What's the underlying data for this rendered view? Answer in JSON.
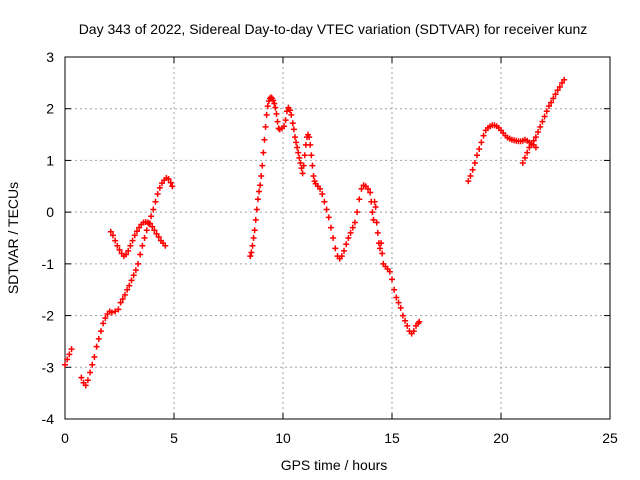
{
  "chart_data": {
    "type": "scatter",
    "title": "Day 343 of 2022, Sidereal Day-to-day VTEC variation (SDTVAR) for receiver kunz",
    "xlabel": "GPS time / hours",
    "ylabel": "SDTVAR / TECUs",
    "xlim": [
      0,
      25
    ],
    "ylim": [
      -4,
      3
    ],
    "xticks": [
      0,
      5,
      10,
      15,
      20,
      25
    ],
    "yticks": [
      -4,
      -3,
      -2,
      -1,
      0,
      1,
      2,
      3
    ],
    "grid": true,
    "marker": "plus",
    "color": "#ff0000",
    "segments": [
      [
        [
          0.0,
          -2.95
        ],
        [
          0.1,
          -2.85
        ],
        [
          0.2,
          -2.75
        ],
        [
          0.3,
          -2.65
        ]
      ],
      [
        [
          0.75,
          -3.2
        ],
        [
          0.85,
          -3.3
        ],
        [
          0.95,
          -3.35
        ],
        [
          1.05,
          -3.25
        ],
        [
          1.15,
          -3.1
        ],
        [
          1.25,
          -2.95
        ],
        [
          1.35,
          -2.8
        ],
        [
          1.45,
          -2.6
        ],
        [
          1.55,
          -2.45
        ],
        [
          1.65,
          -2.3
        ],
        [
          1.75,
          -2.15
        ],
        [
          1.85,
          -2.05
        ],
        [
          1.95,
          -1.97
        ],
        [
          2.05,
          -1.92
        ],
        [
          2.15,
          -1.94
        ],
        [
          2.3,
          -1.92
        ],
        [
          2.45,
          -1.88
        ],
        [
          2.55,
          -1.75
        ],
        [
          2.65,
          -1.68
        ],
        [
          2.75,
          -1.6
        ],
        [
          2.85,
          -1.5
        ],
        [
          2.95,
          -1.42
        ],
        [
          3.05,
          -1.32
        ],
        [
          3.15,
          -1.22
        ],
        [
          3.25,
          -1.12
        ],
        [
          3.35,
          -1.0
        ],
        [
          3.45,
          -0.82
        ],
        [
          3.55,
          -0.65
        ],
        [
          3.65,
          -0.5
        ],
        [
          3.75,
          -0.35
        ],
        [
          3.85,
          -0.22
        ],
        [
          3.95,
          -0.08
        ],
        [
          4.05,
          0.05
        ],
        [
          4.15,
          0.2
        ],
        [
          4.25,
          0.35
        ],
        [
          4.35,
          0.47
        ],
        [
          4.45,
          0.56
        ],
        [
          4.55,
          0.62
        ],
        [
          4.65,
          0.66
        ],
        [
          4.75,
          0.64
        ],
        [
          4.85,
          0.57
        ],
        [
          4.92,
          0.5
        ]
      ],
      [
        [
          2.1,
          -0.38
        ],
        [
          2.2,
          -0.45
        ],
        [
          2.3,
          -0.55
        ],
        [
          2.4,
          -0.65
        ],
        [
          2.5,
          -0.73
        ],
        [
          2.6,
          -0.8
        ],
        [
          2.7,
          -0.85
        ],
        [
          2.8,
          -0.82
        ],
        [
          2.9,
          -0.75
        ],
        [
          3.0,
          -0.65
        ],
        [
          3.1,
          -0.55
        ],
        [
          3.2,
          -0.45
        ],
        [
          3.3,
          -0.37
        ],
        [
          3.4,
          -0.3
        ],
        [
          3.5,
          -0.24
        ],
        [
          3.6,
          -0.2
        ],
        [
          3.7,
          -0.19
        ],
        [
          3.8,
          -0.2
        ],
        [
          3.9,
          -0.22
        ],
        [
          4.0,
          -0.28
        ],
        [
          4.1,
          -0.35
        ],
        [
          4.2,
          -0.42
        ],
        [
          4.3,
          -0.48
        ],
        [
          4.4,
          -0.55
        ],
        [
          4.5,
          -0.6
        ],
        [
          4.6,
          -0.65
        ]
      ],
      [
        [
          8.5,
          -0.85
        ],
        [
          8.55,
          -0.78
        ],
        [
          8.6,
          -0.65
        ],
        [
          8.65,
          -0.5
        ],
        [
          8.7,
          -0.35
        ],
        [
          8.75,
          -0.15
        ],
        [
          8.8,
          0.05
        ],
        [
          8.85,
          0.25
        ],
        [
          8.9,
          0.4
        ],
        [
          8.95,
          0.52
        ],
        [
          9.0,
          0.7
        ],
        [
          9.05,
          0.9
        ],
        [
          9.1,
          1.15
        ],
        [
          9.15,
          1.4
        ],
        [
          9.2,
          1.65
        ],
        [
          9.25,
          1.88
        ],
        [
          9.3,
          2.05
        ],
        [
          9.35,
          2.15
        ],
        [
          9.4,
          2.2
        ],
        [
          9.45,
          2.22
        ],
        [
          9.5,
          2.2
        ],
        [
          9.55,
          2.16
        ],
        [
          9.6,
          2.1
        ],
        [
          9.65,
          2.02
        ],
        [
          9.7,
          1.9
        ],
        [
          9.75,
          1.75
        ],
        [
          9.8,
          1.62
        ],
        [
          9.85,
          1.6
        ],
        [
          9.95,
          1.62
        ],
        [
          10.05,
          1.66
        ],
        [
          10.12,
          1.78
        ],
        [
          10.18,
          1.95
        ],
        [
          10.25,
          2.02
        ],
        [
          10.32,
          1.97
        ],
        [
          10.38,
          1.88
        ],
        [
          10.45,
          1.72
        ],
        [
          10.5,
          1.6
        ],
        [
          10.55,
          1.45
        ],
        [
          10.6,
          1.35
        ],
        [
          10.65,
          1.25
        ],
        [
          10.7,
          1.15
        ],
        [
          10.75,
          1.05
        ],
        [
          10.8,
          0.95
        ],
        [
          10.85,
          0.85
        ],
        [
          10.9,
          0.75
        ],
        [
          10.95,
          0.9
        ],
        [
          11.0,
          1.1
        ],
        [
          11.05,
          1.3
        ],
        [
          11.1,
          1.45
        ],
        [
          11.15,
          1.5
        ],
        [
          11.2,
          1.45
        ],
        [
          11.25,
          1.3
        ],
        [
          11.3,
          1.1
        ],
        [
          11.35,
          0.9
        ],
        [
          11.4,
          0.7
        ],
        [
          11.45,
          0.6
        ],
        [
          11.5,
          0.55
        ],
        [
          11.6,
          0.5
        ],
        [
          11.7,
          0.45
        ],
        [
          11.8,
          0.35
        ],
        [
          11.9,
          0.2
        ],
        [
          12.0,
          0.05
        ],
        [
          12.1,
          -0.1
        ],
        [
          12.2,
          -0.3
        ],
        [
          12.3,
          -0.5
        ],
        [
          12.4,
          -0.7
        ],
        [
          12.5,
          -0.85
        ],
        [
          12.6,
          -0.9
        ],
        [
          12.7,
          -0.85
        ],
        [
          12.8,
          -0.75
        ],
        [
          12.9,
          -0.62
        ],
        [
          13.0,
          -0.5
        ],
        [
          13.1,
          -0.4
        ],
        [
          13.2,
          -0.3
        ],
        [
          13.3,
          -0.2
        ],
        [
          13.4,
          0.0
        ],
        [
          13.5,
          0.25
        ],
        [
          13.6,
          0.45
        ],
        [
          13.7,
          0.52
        ],
        [
          13.8,
          0.5
        ],
        [
          13.9,
          0.45
        ],
        [
          14.0,
          0.38
        ],
        [
          14.05,
          0.2
        ],
        [
          14.1,
          0.0
        ],
        [
          14.15,
          -0.15
        ],
        [
          14.2,
          0.2
        ],
        [
          14.25,
          0.1
        ],
        [
          14.3,
          -0.2
        ],
        [
          14.35,
          -0.4
        ],
        [
          14.4,
          -0.6
        ],
        [
          14.45,
          -0.7
        ],
        [
          14.5,
          -0.6
        ],
        [
          14.55,
          -0.8
        ],
        [
          14.6,
          -1.0
        ],
        [
          14.7,
          -1.05
        ],
        [
          14.8,
          -1.1
        ],
        [
          14.9,
          -1.15
        ],
        [
          15.0,
          -1.3
        ],
        [
          15.1,
          -1.5
        ],
        [
          15.2,
          -1.65
        ],
        [
          15.3,
          -1.75
        ],
        [
          15.4,
          -1.85
        ],
        [
          15.5,
          -2.0
        ],
        [
          15.6,
          -2.1
        ],
        [
          15.7,
          -2.2
        ],
        [
          15.8,
          -2.3
        ],
        [
          15.9,
          -2.35
        ],
        [
          16.0,
          -2.3
        ],
        [
          16.1,
          -2.2
        ],
        [
          16.2,
          -2.15
        ],
        [
          16.25,
          -2.12
        ]
      ],
      [
        [
          18.5,
          0.6
        ],
        [
          18.6,
          0.7
        ],
        [
          18.7,
          0.82
        ],
        [
          18.8,
          0.95
        ],
        [
          18.9,
          1.1
        ],
        [
          19.0,
          1.22
        ],
        [
          19.1,
          1.35
        ],
        [
          19.2,
          1.48
        ],
        [
          19.3,
          1.58
        ],
        [
          19.4,
          1.63
        ],
        [
          19.5,
          1.66
        ],
        [
          19.6,
          1.68
        ],
        [
          19.7,
          1.68
        ],
        [
          19.8,
          1.66
        ],
        [
          19.9,
          1.63
        ],
        [
          20.0,
          1.58
        ],
        [
          20.1,
          1.53
        ],
        [
          20.2,
          1.48
        ],
        [
          20.3,
          1.44
        ],
        [
          20.4,
          1.42
        ],
        [
          20.5,
          1.4
        ],
        [
          20.6,
          1.39
        ],
        [
          20.7,
          1.38
        ],
        [
          20.8,
          1.37
        ],
        [
          20.9,
          1.37
        ],
        [
          21.0,
          1.38
        ],
        [
          21.1,
          1.4
        ],
        [
          21.2,
          1.38
        ],
        [
          21.3,
          1.35
        ],
        [
          21.4,
          1.32
        ],
        [
          21.5,
          1.3
        ],
        [
          21.6,
          1.25
        ]
      ],
      [
        [
          21.0,
          0.95
        ],
        [
          21.1,
          1.05
        ],
        [
          21.2,
          1.15
        ],
        [
          21.3,
          1.25
        ],
        [
          21.4,
          1.3
        ],
        [
          21.5,
          1.38
        ],
        [
          21.6,
          1.45
        ],
        [
          21.7,
          1.55
        ],
        [
          21.8,
          1.65
        ],
        [
          21.9,
          1.75
        ],
        [
          22.0,
          1.85
        ],
        [
          22.1,
          1.95
        ],
        [
          22.2,
          2.05
        ],
        [
          22.3,
          2.12
        ],
        [
          22.4,
          2.2
        ],
        [
          22.5,
          2.28
        ],
        [
          22.6,
          2.36
        ],
        [
          22.7,
          2.42
        ],
        [
          22.8,
          2.5
        ],
        [
          22.9,
          2.56
        ]
      ]
    ]
  }
}
